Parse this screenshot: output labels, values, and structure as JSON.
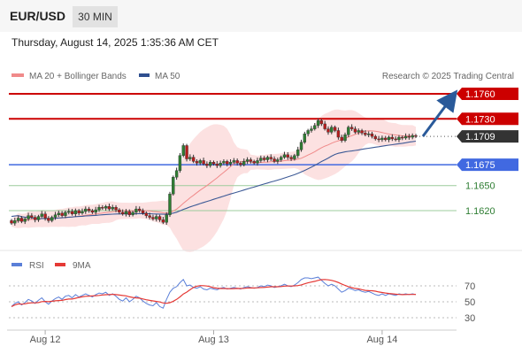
{
  "header": {
    "pair": "EUR/USD",
    "timeframe": "30 MIN"
  },
  "timestamp": "Thursday, August 14, 2025 1:35:36 AM CET",
  "legend": {
    "ma20": "MA 20 + Bollinger Bands",
    "ma50": "MA 50",
    "credit": "Research © 2025 Trading Central",
    "rsi": "RSI",
    "rsi_ma": "9MA"
  },
  "colors": {
    "resistance": "#cc0000",
    "support": "#4169e1",
    "level": "#2e7d32",
    "price": "#333333",
    "candle_up": "#2e7d32",
    "candle_down": "#b71c1c",
    "arrow": "#2a5a9a"
  },
  "chart_data": [
    {
      "type": "candlestick",
      "pair": "EUR/USD",
      "interval": "30 MIN",
      "ylim": [
        1.158,
        1.178
      ],
      "x_ticks": [
        "Aug 12",
        "Aug 13",
        "Aug 14"
      ],
      "levels": [
        {
          "label": "1.1760",
          "value": 1.176,
          "kind": "resistance"
        },
        {
          "label": "1.1730",
          "value": 1.173,
          "kind": "resistance"
        },
        {
          "label": "1.1709",
          "value": 1.1709,
          "kind": "last"
        },
        {
          "label": "1.1675",
          "value": 1.1675,
          "kind": "pivot"
        },
        {
          "label": "1.1650",
          "value": 1.165,
          "kind": "support"
        },
        {
          "label": "1.1620",
          "value": 1.162,
          "kind": "support"
        }
      ],
      "projection": {
        "from": 1.1709,
        "to": 1.176
      },
      "close": [
        1.1605,
        1.1608,
        1.1611,
        1.1607,
        1.161,
        1.1614,
        1.1612,
        1.1609,
        1.1613,
        1.1616,
        1.1611,
        1.1608,
        1.1612,
        1.1615,
        1.1617,
        1.1614,
        1.1618,
        1.1619,
        1.1616,
        1.162,
        1.1617,
        1.1619,
        1.1622,
        1.162,
        1.1618,
        1.1621,
        1.1624,
        1.1623,
        1.1625,
        1.1622,
        1.1624,
        1.1621,
        1.1618,
        1.1616,
        1.1619,
        1.1615,
        1.1618,
        1.1622,
        1.162,
        1.1617,
        1.1614,
        1.1612,
        1.161,
        1.1613,
        1.1609,
        1.1606,
        1.1615,
        1.164,
        1.166,
        1.1668,
        1.1686,
        1.1698,
        1.1682,
        1.1684,
        1.1679,
        1.1677,
        1.168,
        1.1676,
        1.1674,
        1.1678,
        1.1676,
        1.1674,
        1.1677,
        1.1679,
        1.1676,
        1.1678,
        1.168,
        1.1677,
        1.1675,
        1.1679,
        1.1681,
        1.1679,
        1.1677,
        1.168,
        1.1683,
        1.1681,
        1.1684,
        1.1682,
        1.1679,
        1.1681,
        1.1684,
        1.1687,
        1.1684,
        1.1682,
        1.1686,
        1.1693,
        1.1702,
        1.1712,
        1.1716,
        1.1718,
        1.1722,
        1.1728,
        1.1724,
        1.1718,
        1.1714,
        1.172,
        1.1716,
        1.1708,
        1.1704,
        1.1711,
        1.172,
        1.1718,
        1.1714,
        1.1716,
        1.1713,
        1.1711,
        1.1712,
        1.1709,
        1.1706,
        1.1705,
        1.1707,
        1.1705,
        1.1708,
        1.1706,
        1.1705,
        1.1708,
        1.1707,
        1.1709,
        1.1708,
        1.171,
        1.1709
      ],
      "rsi": [
        44,
        48,
        50,
        46,
        49,
        53,
        51,
        48,
        52,
        55,
        50,
        47,
        51,
        54,
        56,
        53,
        57,
        58,
        55,
        59,
        56,
        58,
        60,
        58,
        56,
        59,
        61,
        60,
        62,
        58,
        60,
        57,
        53,
        51,
        55,
        50,
        53,
        57,
        55,
        51,
        48,
        46,
        45,
        49,
        44,
        42,
        53,
        62,
        67,
        69,
        74,
        78,
        70,
        71,
        68,
        67,
        69,
        66,
        65,
        67,
        66,
        65,
        67,
        68,
        66,
        67,
        68,
        67,
        66,
        68,
        69,
        68,
        67,
        68,
        70,
        69,
        71,
        70,
        68,
        69,
        70,
        72,
        70,
        69,
        71,
        74,
        78,
        80,
        80,
        79,
        80,
        81,
        77,
        73,
        70,
        72,
        70,
        66,
        62,
        64,
        67,
        66,
        64,
        65,
        63,
        62,
        63,
        61,
        59,
        58,
        60,
        58,
        60,
        59,
        58,
        60,
        59,
        60,
        59,
        60,
        59
      ],
      "rsi_ticks": [
        70,
        50,
        30
      ]
    }
  ]
}
